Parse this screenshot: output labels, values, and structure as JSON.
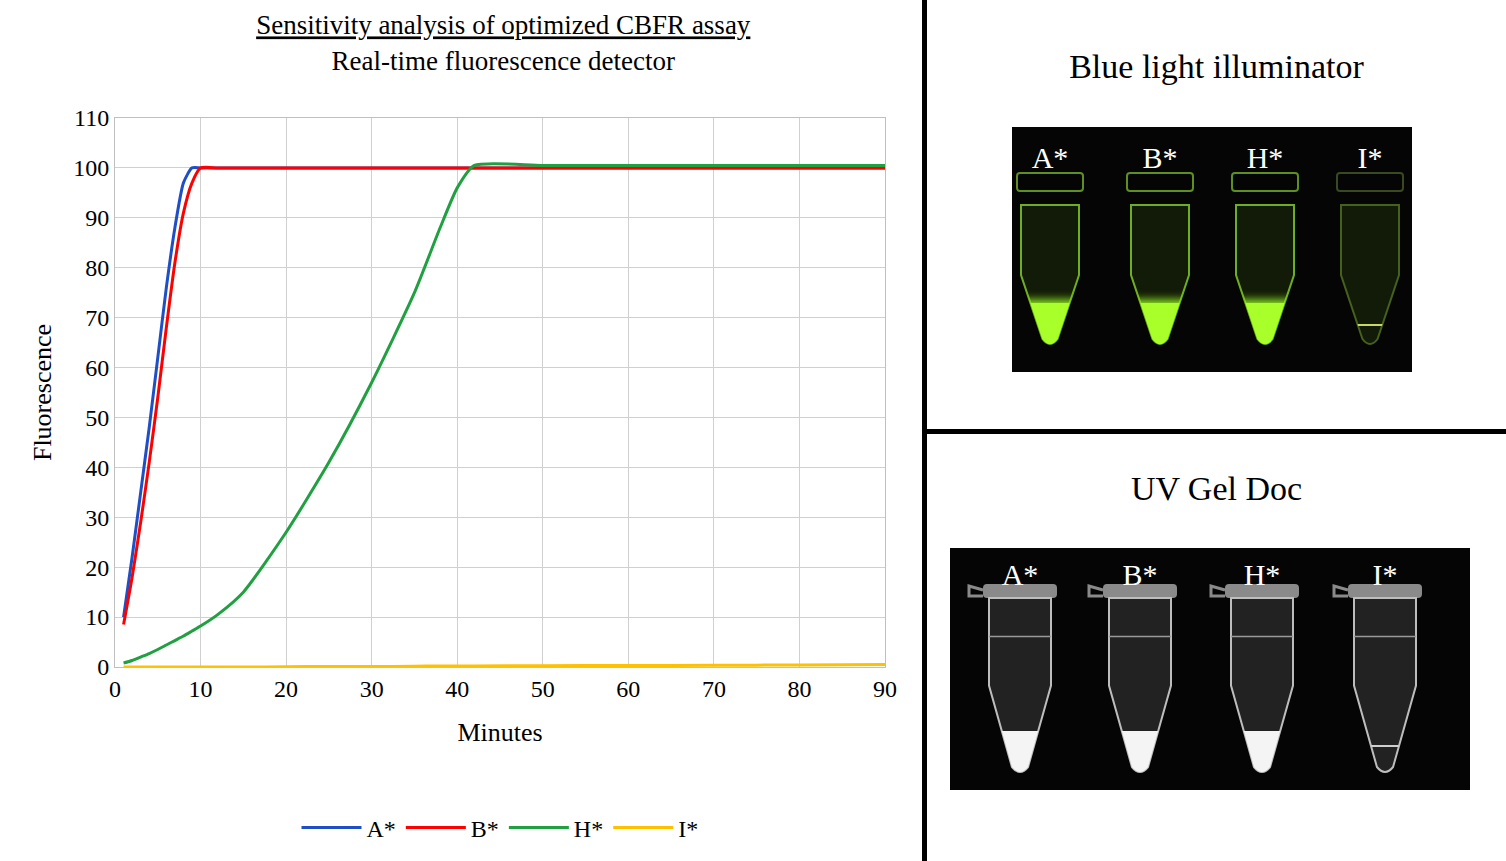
{
  "chart_data": {
    "type": "line",
    "title": "Sensitivity analysis of optimized CBFR assay",
    "subtitle": "Real-time fluorescence detector",
    "x_label": "Minutes",
    "y_label": "Fluorescence",
    "x": [
      1,
      2,
      3,
      4,
      5,
      6,
      7,
      8,
      9,
      10,
      12,
      15,
      20,
      25,
      30,
      35,
      38,
      40,
      42,
      50,
      60,
      70,
      80,
      90
    ],
    "series": [
      {
        "name": "A*",
        "color": "#1f4fc4",
        "values": [
          10,
          22,
          35,
          48,
          62,
          76,
          88,
          97,
          100,
          100,
          100,
          100,
          100,
          100,
          100,
          100,
          100,
          100,
          100,
          100,
          100,
          100,
          100,
          100
        ]
      },
      {
        "name": "B*",
        "color": "#ff0000",
        "values": [
          8.5,
          18,
          29,
          41,
          54,
          68,
          81,
          91,
          97,
          100,
          100,
          100,
          100,
          100,
          100,
          100,
          100,
          100,
          100,
          100,
          100,
          100,
          100,
          100
        ]
      },
      {
        "name": "H*",
        "color": "#20a040",
        "values": [
          0.8,
          1.3,
          2,
          2.7,
          3.5,
          4.4,
          5.3,
          6.2,
          7.2,
          8.2,
          10.5,
          15,
          27,
          41,
          57,
          75,
          88,
          96,
          100.5,
          100.5,
          100.5,
          100.5,
          100.5,
          100.5
        ]
      },
      {
        "name": "I*",
        "color": "#ffc000",
        "values": [
          0,
          0,
          0,
          0,
          0,
          0,
          0,
          0,
          0,
          0,
          0,
          0,
          0.05,
          0.1,
          0.1,
          0.15,
          0.2,
          0.2,
          0.2,
          0.25,
          0.3,
          0.35,
          0.4,
          0.5
        ]
      }
    ],
    "xlim": [
      0,
      90
    ],
    "xticks": [
      0,
      10,
      20,
      30,
      40,
      50,
      60,
      70,
      80,
      90
    ],
    "ylim": [
      0,
      110
    ],
    "yticks": [
      0,
      10,
      20,
      30,
      40,
      50,
      60,
      70,
      80,
      90,
      100,
      110
    ],
    "grid": true,
    "legend": "bottom"
  },
  "panels": [
    {
      "title": "Blue light illuminator",
      "tubes": [
        "A*",
        "B*",
        "H*",
        "I*"
      ]
    },
    {
      "title": "UV Gel Doc",
      "tubes": [
        "A*",
        "B*",
        "H*",
        "I*"
      ]
    }
  ]
}
